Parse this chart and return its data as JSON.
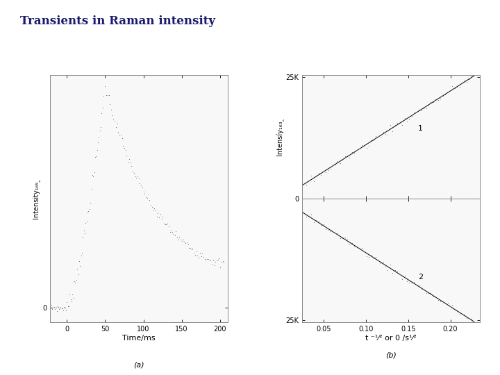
{
  "title": "Transients in Raman intensity",
  "title_fontsize": 12,
  "title_fontweight": "bold",
  "title_color": "#1a1a6e",
  "background_color": "#ffffff",
  "plot_a": {
    "xlabel": "Time/ms",
    "ylabel": "Intensity₁₆₅‸",
    "xlabel_fontsize": 8,
    "ylabel_fontsize": 7,
    "caption": "(a)",
    "xlim": [
      -22,
      210
    ],
    "ylim": [
      -0.07,
      1.12
    ],
    "xticks": [
      0,
      50,
      100,
      150,
      200
    ],
    "ytick_0": "0",
    "dot_color": "#666666",
    "dot_size": 2.5
  },
  "plot_b": {
    "xlabel": "t ⁻¹⁄² or 0 /s¹⁄²",
    "ylabel": "Intensíy₁₆₃‸",
    "xlabel_fontsize": 8,
    "ylabel_fontsize": 7,
    "caption": "(b)",
    "xlim": [
      0.025,
      0.235
    ],
    "ylim": [
      -25500,
      25500
    ],
    "xticks": [
      0.05,
      0.1,
      0.15,
      0.2
    ],
    "ytick_pos": "25K",
    "ytick_neg": "25K",
    "label_1": "1",
    "label_2": "2",
    "dot_color": "#666666",
    "dot_size": 2.5,
    "slope1": 111111,
    "slope2": -111111
  }
}
